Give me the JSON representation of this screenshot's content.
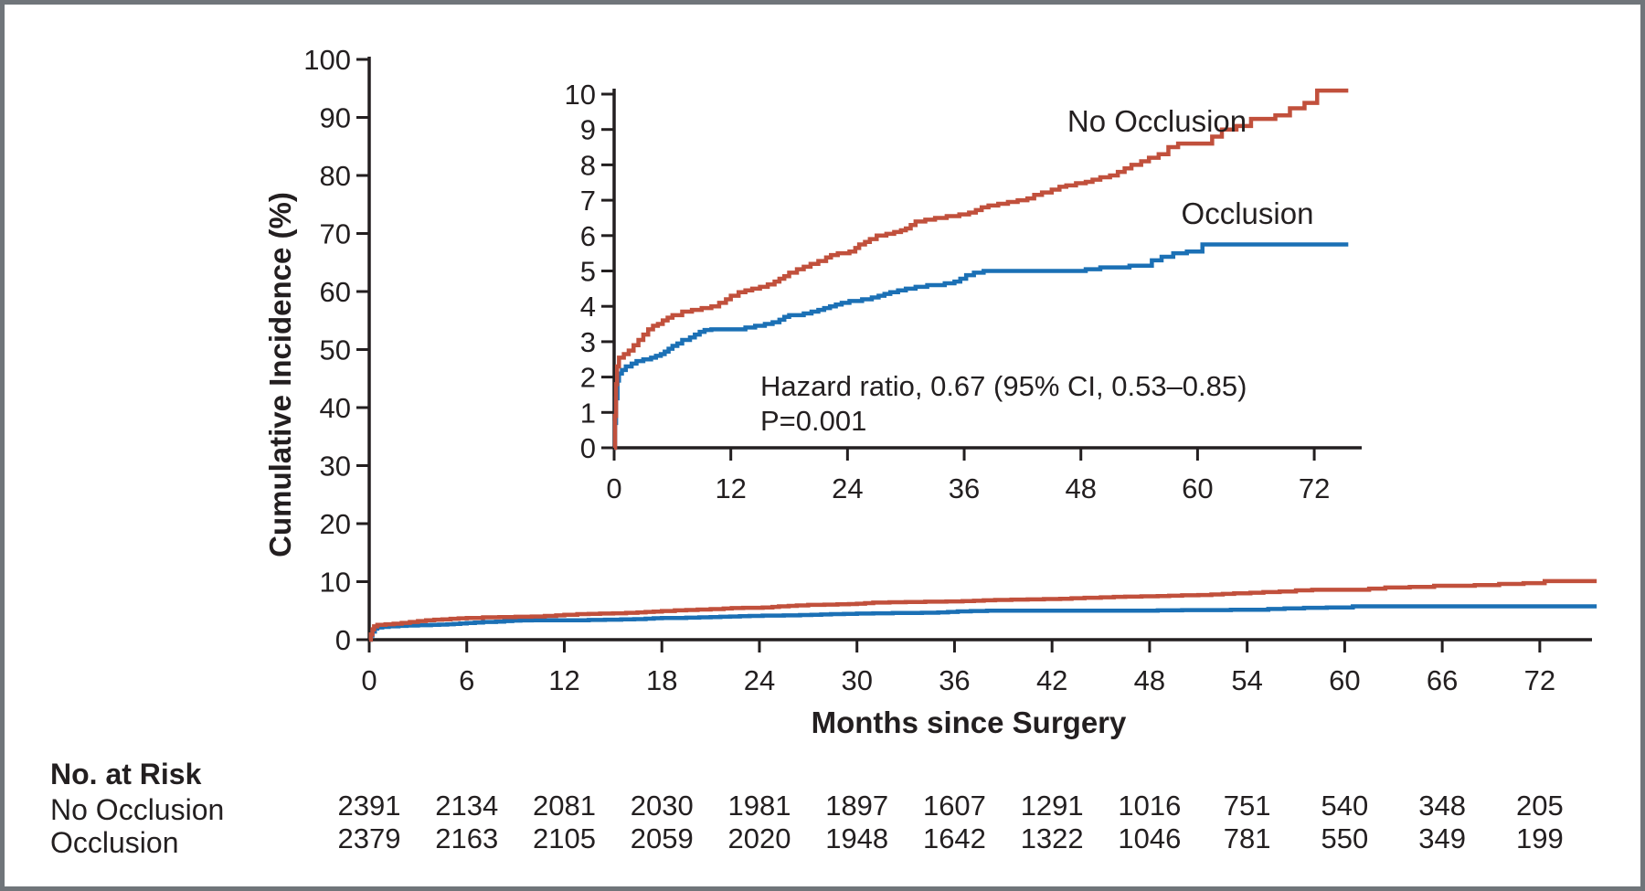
{
  "figure": {
    "y_axis_title": "Cumulative Incidence (%)",
    "x_axis_title": "Months since Surgery",
    "annotation": {
      "line1": "Hazard ratio, 0.67 (95% CI, 0.53–0.85)",
      "line2": "P=0.001"
    },
    "risk_table": {
      "title": "No. at Risk",
      "rows": [
        {
          "label": "No Occlusion",
          "values": [
            2391,
            2134,
            2081,
            2030,
            1981,
            1897,
            1607,
            1291,
            1016,
            751,
            540,
            348,
            205
          ]
        },
        {
          "label": "Occlusion",
          "values": [
            2379,
            2163,
            2105,
            2059,
            2020,
            1948,
            1642,
            1322,
            1046,
            781,
            550,
            349,
            199
          ]
        }
      ]
    },
    "colors": {
      "no_occlusion": "#c1503c",
      "occlusion": "#1b70b5",
      "text": "#231f20",
      "frame": "#70757a"
    }
  },
  "chart_data": {
    "type": "line",
    "subtype": "step-cumulative-incidence",
    "title": "",
    "xlabel": "Months since Surgery",
    "ylabel": "Cumulative Incidence (%)",
    "legend_position": "inline-labels",
    "grid": false,
    "main_axis": {
      "xlim": [
        0,
        75.5
      ],
      "ylim": [
        0,
        100
      ],
      "x_ticks": [
        0,
        6,
        12,
        18,
        24,
        30,
        36,
        42,
        48,
        54,
        60,
        66,
        72
      ],
      "y_ticks": [
        0,
        10,
        20,
        30,
        40,
        50,
        60,
        70,
        80,
        90,
        100
      ]
    },
    "inset_axis": {
      "xlim": [
        0,
        76
      ],
      "ylim": [
        0,
        10
      ],
      "x_ticks": [
        0,
        12,
        24,
        36,
        48,
        60,
        72
      ],
      "y_ticks": [
        0,
        1,
        2,
        3,
        4,
        5,
        6,
        7,
        8,
        9,
        10
      ]
    },
    "series": [
      {
        "name": "No Occlusion",
        "color": "#c1503c",
        "step_points": [
          [
            0,
            0
          ],
          [
            0.1,
            0.9
          ],
          [
            0.2,
            1.8
          ],
          [
            0.3,
            2.3
          ],
          [
            0.5,
            2.55
          ],
          [
            1,
            2.65
          ],
          [
            1.5,
            2.75
          ],
          [
            2,
            2.9
          ],
          [
            2.5,
            3.05
          ],
          [
            3,
            3.2
          ],
          [
            3.5,
            3.35
          ],
          [
            4,
            3.45
          ],
          [
            4.5,
            3.5
          ],
          [
            5,
            3.6
          ],
          [
            5.5,
            3.68
          ],
          [
            6,
            3.75
          ],
          [
            7,
            3.85
          ],
          [
            8,
            3.9
          ],
          [
            9,
            3.95
          ],
          [
            10,
            4.0
          ],
          [
            10.8,
            4.1
          ],
          [
            11.5,
            4.2
          ],
          [
            12,
            4.3
          ],
          [
            12.8,
            4.4
          ],
          [
            13.5,
            4.45
          ],
          [
            14.2,
            4.5
          ],
          [
            15,
            4.55
          ],
          [
            15.8,
            4.62
          ],
          [
            16.5,
            4.7
          ],
          [
            17,
            4.78
          ],
          [
            17.5,
            4.85
          ],
          [
            18,
            4.95
          ],
          [
            18.8,
            5.05
          ],
          [
            19.5,
            5.12
          ],
          [
            20.2,
            5.2
          ],
          [
            21,
            5.28
          ],
          [
            21.8,
            5.38
          ],
          [
            22.3,
            5.45
          ],
          [
            23,
            5.5
          ],
          [
            24.2,
            5.55
          ],
          [
            24.8,
            5.65
          ],
          [
            25.2,
            5.75
          ],
          [
            25.8,
            5.82
          ],
          [
            26.3,
            5.9
          ],
          [
            27,
            6.0
          ],
          [
            28,
            6.05
          ],
          [
            28.8,
            6.1
          ],
          [
            29.5,
            6.15
          ],
          [
            30,
            6.2
          ],
          [
            30.5,
            6.3
          ],
          [
            31,
            6.4
          ],
          [
            32,
            6.45
          ],
          [
            33,
            6.5
          ],
          [
            34.2,
            6.55
          ],
          [
            35.5,
            6.6
          ],
          [
            36.5,
            6.65
          ],
          [
            37.2,
            6.72
          ],
          [
            37.8,
            6.8
          ],
          [
            38.5,
            6.85
          ],
          [
            39.5,
            6.9
          ],
          [
            40.5,
            6.95
          ],
          [
            41.5,
            7.0
          ],
          [
            42.5,
            7.05
          ],
          [
            43.2,
            7.15
          ],
          [
            44,
            7.22
          ],
          [
            45,
            7.3
          ],
          [
            45.8,
            7.38
          ],
          [
            46.5,
            7.42
          ],
          [
            47.5,
            7.48
          ],
          [
            48.5,
            7.52
          ],
          [
            49.2,
            7.58
          ],
          [
            50,
            7.65
          ],
          [
            51,
            7.7
          ],
          [
            51.8,
            7.8
          ],
          [
            52.5,
            7.9
          ],
          [
            53.2,
            8.0
          ],
          [
            54.2,
            8.1
          ],
          [
            55,
            8.2
          ],
          [
            56,
            8.3
          ],
          [
            57,
            8.5
          ],
          [
            58,
            8.6
          ],
          [
            61.5,
            8.8
          ],
          [
            62.5,
            9.0
          ],
          [
            64,
            9.1
          ],
          [
            65.5,
            9.3
          ],
          [
            68,
            9.4
          ],
          [
            69.5,
            9.6
          ],
          [
            71,
            9.75
          ],
          [
            72.3,
            10.1
          ],
          [
            75.5,
            10.1
          ]
        ]
      },
      {
        "name": "Occlusion",
        "color": "#1b70b5",
        "step_points": [
          [
            0,
            0
          ],
          [
            0.1,
            0.7
          ],
          [
            0.2,
            1.4
          ],
          [
            0.35,
            1.9
          ],
          [
            0.5,
            2.1
          ],
          [
            0.8,
            2.2
          ],
          [
            1.2,
            2.3
          ],
          [
            1.8,
            2.38
          ],
          [
            2.3,
            2.45
          ],
          [
            3,
            2.5
          ],
          [
            3.8,
            2.55
          ],
          [
            4.3,
            2.6
          ],
          [
            4.8,
            2.65
          ],
          [
            5.2,
            2.72
          ],
          [
            5.6,
            2.8
          ],
          [
            6,
            2.88
          ],
          [
            6.5,
            2.95
          ],
          [
            7,
            3.05
          ],
          [
            7.8,
            3.12
          ],
          [
            8.3,
            3.2
          ],
          [
            8.8,
            3.28
          ],
          [
            9.3,
            3.33
          ],
          [
            10,
            3.35
          ],
          [
            13.5,
            3.4
          ],
          [
            14.5,
            3.45
          ],
          [
            15.5,
            3.5
          ],
          [
            16.3,
            3.55
          ],
          [
            17,
            3.62
          ],
          [
            17.5,
            3.7
          ],
          [
            18,
            3.75
          ],
          [
            19.5,
            3.8
          ],
          [
            20.3,
            3.85
          ],
          [
            21,
            3.9
          ],
          [
            21.6,
            3.95
          ],
          [
            22.2,
            4.0
          ],
          [
            22.8,
            4.05
          ],
          [
            23.4,
            4.1
          ],
          [
            24.2,
            4.15
          ],
          [
            25.5,
            4.2
          ],
          [
            26.5,
            4.25
          ],
          [
            27.2,
            4.3
          ],
          [
            27.8,
            4.35
          ],
          [
            28.4,
            4.4
          ],
          [
            29.2,
            4.45
          ],
          [
            30,
            4.5
          ],
          [
            31,
            4.55
          ],
          [
            32.2,
            4.6
          ],
          [
            34,
            4.65
          ],
          [
            35,
            4.7
          ],
          [
            35.6,
            4.78
          ],
          [
            36.2,
            4.88
          ],
          [
            37,
            4.95
          ],
          [
            38,
            5.0
          ],
          [
            48.5,
            5.05
          ],
          [
            50,
            5.1
          ],
          [
            53,
            5.15
          ],
          [
            55.3,
            5.3
          ],
          [
            56.3,
            5.4
          ],
          [
            57.5,
            5.5
          ],
          [
            58.9,
            5.55
          ],
          [
            60.5,
            5.75
          ],
          [
            75.5,
            5.75
          ]
        ]
      }
    ],
    "annotations": [
      "Hazard ratio, 0.67 (95% CI, 0.53–0.85)",
      "P=0.001"
    ],
    "risk_table": {
      "title": "No. at Risk",
      "time_points": [
        0,
        6,
        12,
        18,
        24,
        30,
        36,
        42,
        48,
        54,
        60,
        66,
        72
      ],
      "rows": [
        {
          "label": "No Occlusion",
          "values": [
            2391,
            2134,
            2081,
            2030,
            1981,
            1897,
            1607,
            1291,
            1016,
            751,
            540,
            348,
            205
          ]
        },
        {
          "label": "Occlusion",
          "values": [
            2379,
            2163,
            2105,
            2059,
            2020,
            1948,
            1642,
            1322,
            1046,
            781,
            550,
            349,
            199
          ]
        }
      ]
    }
  }
}
